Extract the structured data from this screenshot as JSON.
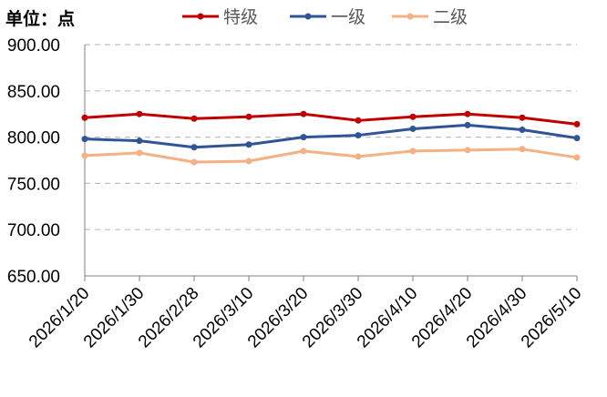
{
  "chart_data": {
    "type": "line",
    "unit_label": "单位：点",
    "categories": [
      "2026/1/20",
      "2026/1/30",
      "2026/2/28",
      "2026/3/10",
      "2026/3/20",
      "2026/3/30",
      "2026/4/10",
      "2026/4/20",
      "2026/4/30",
      "2026/5/10"
    ],
    "y_ticks": [
      "650.00",
      "700.00",
      "750.00",
      "800.00",
      "850.00",
      "900.00"
    ],
    "ylim": [
      650,
      900
    ],
    "grid": true,
    "legend_position": "top",
    "series": [
      {
        "name": "特级",
        "color": "#C00000",
        "values": [
          821,
          825,
          820,
          822,
          825,
          818,
          822,
          825,
          821,
          814
        ]
      },
      {
        "name": "一级",
        "color": "#2F5597",
        "values": [
          798,
          796,
          789,
          792,
          800,
          802,
          809,
          813,
          808,
          799
        ]
      },
      {
        "name": "二级",
        "color": "#F4B183",
        "values": [
          780,
          783,
          773,
          774,
          785,
          779,
          785,
          786,
          787,
          778
        ]
      }
    ]
  }
}
